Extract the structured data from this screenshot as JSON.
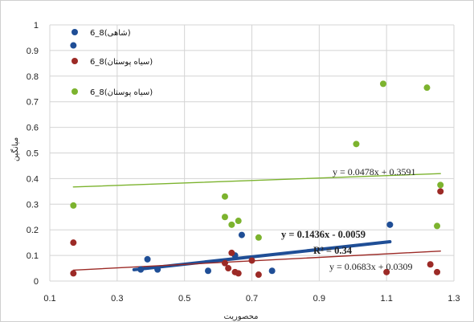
{
  "chart_data": {
    "type": "scatter",
    "xlabel": "محصوريت",
    "ylabel": "ميانگين",
    "xlim": [
      0.1,
      1.3
    ],
    "ylim": [
      0,
      1
    ],
    "xticks": [
      "0.1",
      "0.3",
      "0.5",
      "0.7",
      "0.9",
      "1.1",
      "1.3"
    ],
    "yticks": [
      "0",
      "0.1",
      "0.2",
      "0.3",
      "0.4",
      "0.5",
      "0.6",
      "0.7",
      "0.8",
      "0.9",
      "1"
    ],
    "grid": true,
    "legend_position": "top-left",
    "series": [
      {
        "name": "6_8(شاهی)",
        "color": "#1f4e96",
        "points": [
          [
            0.17,
            0.92
          ],
          [
            0.37,
            0.045
          ],
          [
            0.39,
            0.085
          ],
          [
            0.42,
            0.045
          ],
          [
            0.57,
            0.04
          ],
          [
            0.65,
            0.1
          ],
          [
            0.67,
            0.18
          ],
          [
            0.76,
            0.04
          ],
          [
            1.11,
            0.22
          ]
        ],
        "trend": {
          "slope": 0.1436,
          "intercept": -0.0059,
          "x_range": [
            0.35,
            1.11
          ],
          "width": 4
        },
        "trend_label": "y = 0.1436x - 0.0059",
        "r2_label": "R² = 0.34"
      },
      {
        "name": "6_8(سیاه پوستان)",
        "color": "#9c2a26",
        "points": [
          [
            0.17,
            0.15
          ],
          [
            0.17,
            0.03
          ],
          [
            0.62,
            0.07
          ],
          [
            0.63,
            0.05
          ],
          [
            0.64,
            0.11
          ],
          [
            0.65,
            0.035
          ],
          [
            0.66,
            0.03
          ],
          [
            0.7,
            0.08
          ],
          [
            0.72,
            0.025
          ],
          [
            1.1,
            0.035
          ],
          [
            1.23,
            0.065
          ],
          [
            1.25,
            0.035
          ],
          [
            1.26,
            0.35
          ]
        ],
        "trend": {
          "slope": 0.0683,
          "intercept": 0.0309,
          "x_range": [
            0.17,
            1.26
          ],
          "width": 1.4
        },
        "trend_label": "y = 0.0683x + 0.0309"
      },
      {
        "name": "6_8(سیاه پوستان)",
        "color": "#7cb32e",
        "points": [
          [
            0.17,
            0.295
          ],
          [
            0.62,
            0.33
          ],
          [
            0.62,
            0.25
          ],
          [
            0.64,
            0.22
          ],
          [
            0.66,
            0.235
          ],
          [
            0.72,
            0.17
          ],
          [
            1.01,
            0.535
          ],
          [
            1.09,
            0.77
          ],
          [
            1.22,
            0.755
          ],
          [
            1.25,
            0.215
          ],
          [
            1.26,
            0.375
          ]
        ],
        "trend": {
          "slope": 0.0478,
          "intercept": 0.3591,
          "x_range": [
            0.17,
            1.26
          ],
          "width": 1.4
        },
        "trend_label": "y = 0.0478x + 0.3591"
      }
    ]
  }
}
